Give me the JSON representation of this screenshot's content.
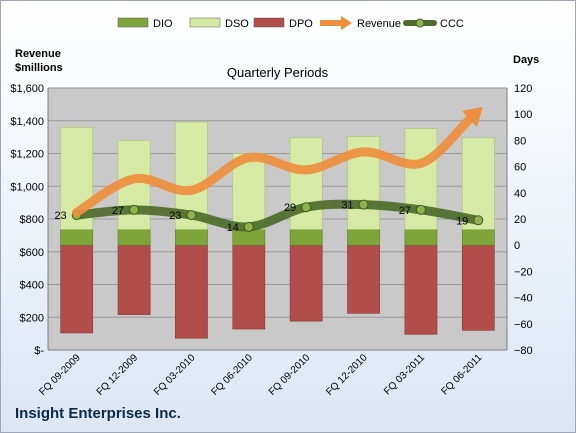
{
  "chart_data": {
    "type": "bar",
    "title": "Quarterly Periods",
    "company": "Insight Enterprises Inc.",
    "ylabel_left": "Revenue\n$millions",
    "ylabel_right": "Days",
    "categories": [
      "FQ 09-2009",
      "FQ 12-2009",
      "FQ 03-2010",
      "FQ 06-2010",
      "FQ 09-2010",
      "FQ 12-2010",
      "FQ 03-2011",
      "FQ 06-2011"
    ],
    "left_axis": {
      "min": 0,
      "max": 1600,
      "step": 200,
      "ticks": [
        "$-",
        "$200",
        "$400",
        "$600",
        "$800",
        "$1,000",
        "$1,200",
        "$1,400",
        "$1,600"
      ]
    },
    "right_axis": {
      "min": -80,
      "max": 120,
      "step": 20
    },
    "grid": true,
    "legend": {
      "placement": "top"
    },
    "series": [
      {
        "name": "DIO",
        "type": "bar",
        "axis": "right",
        "color": "#7ea53a",
        "values": [
          12,
          12,
          12,
          12,
          12,
          12,
          12,
          12
        ]
      },
      {
        "name": "DSO",
        "type": "bar",
        "axis": "right",
        "color": "#d6e9a5",
        "values": [
          78,
          68,
          82,
          58,
          70,
          71,
          77,
          70
        ]
      },
      {
        "name": "DPO",
        "type": "bar",
        "axis": "right",
        "color": "#b14d4a",
        "values": [
          -67,
          -53,
          -71,
          -64,
          -58,
          -52,
          -68,
          -65
        ]
      },
      {
        "name": "Revenue",
        "type": "line",
        "axis": "left",
        "color": "#ee8e3e",
        "values": [
          840,
          1045,
          975,
          1175,
          1100,
          1210,
          1140,
          1460
        ]
      },
      {
        "name": "CCC",
        "type": "line",
        "axis": "right",
        "color": "#4d6b2a",
        "values": [
          23,
          27,
          23,
          14,
          29,
          31,
          27,
          19
        ],
        "labels": [
          "23",
          "27",
          "23",
          "14",
          "29",
          "31",
          "27",
          "19"
        ]
      }
    ]
  }
}
